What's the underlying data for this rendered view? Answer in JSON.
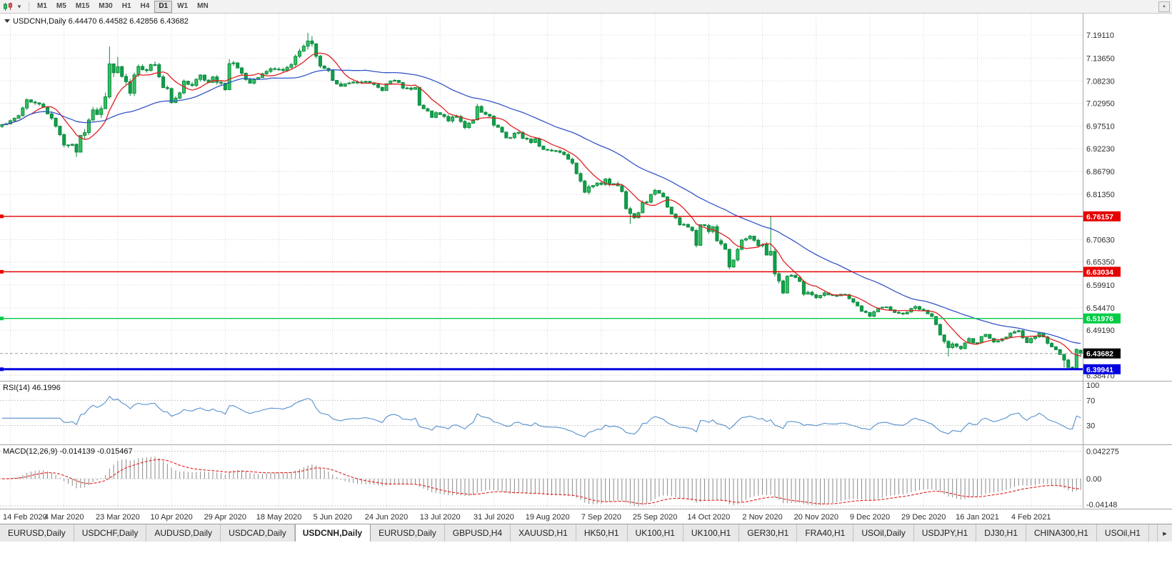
{
  "toolbar": {
    "timeframes": [
      {
        "label": "M1",
        "active": false
      },
      {
        "label": "M5",
        "active": false
      },
      {
        "label": "M15",
        "active": false
      },
      {
        "label": "M30",
        "active": false
      },
      {
        "label": "H1",
        "active": false
      },
      {
        "label": "H4",
        "active": false
      },
      {
        "label": "D1",
        "active": true
      },
      {
        "label": "W1",
        "active": false
      },
      {
        "label": "MN",
        "active": false
      }
    ],
    "caret": "▾",
    "corner_arrow": "▴"
  },
  "header": {
    "marker": "▼",
    "symbol": "USDCNH,Daily",
    "open": "6.44470",
    "high": "6.44582",
    "low": "6.42856",
    "close": "6.43682"
  },
  "price_axis": {
    "range": {
      "max": 7.242,
      "min": 6.372
    },
    "labels": [
      [
        "7.19110",
        7.1911
      ],
      [
        "7.13650",
        7.1365
      ],
      [
        "7.08230",
        7.0823
      ],
      [
        "7.02950",
        7.0295
      ],
      [
        "6.97510",
        6.9751
      ],
      [
        "6.92230",
        6.9223
      ],
      [
        "6.86790",
        6.8679
      ],
      [
        "6.81350",
        6.8135
      ],
      [
        "6.70630",
        6.7063
      ],
      [
        "6.65350",
        6.6535
      ],
      [
        "6.59910",
        6.5991
      ],
      [
        "6.54470",
        6.5447
      ],
      [
        "6.49190",
        6.4919
      ],
      [
        "6.38470",
        6.3847
      ]
    ]
  },
  "hlines": [
    {
      "label": "6.76157",
      "price": 6.76157,
      "color": "#e60000",
      "width": 1.4
    },
    {
      "label": "6.63034",
      "price": 6.63034,
      "color": "#e60000",
      "width": 1.4
    },
    {
      "label": "6.51976",
      "price": 6.51976,
      "color": "#00cc44",
      "width": 1.4
    },
    {
      "label": "6.39941",
      "price": 6.39941,
      "color": "#0000e0",
      "width": 3
    }
  ],
  "current_price": {
    "label": "6.43682",
    "price": 6.43682,
    "bg": "#000000"
  },
  "time_axis": {
    "tick_start": 2,
    "tick_step": 13,
    "labels": [
      "14 Feb 2020",
      "4 Mar 2020",
      "23 Mar 2020",
      "10 Apr 2020",
      "29 Apr 2020",
      "18 May 2020",
      "5 Jun 2020",
      "24 Jun 2020",
      "13 Jul 2020",
      "31 Jul 2020",
      "19 Aug 2020",
      "7 Sep 2020",
      "25 Sep 2020",
      "14 Oct 2020",
      "2 Nov 2020",
      "20 Nov 2020",
      "9 Dec 2020",
      "29 Dec 2020",
      "16 Jan 2021",
      "4 Feb 2021"
    ]
  },
  "chart_data": {
    "type": "candlestick",
    "symbol": "USDCNH",
    "timeframe": "Daily",
    "count": 262,
    "seed": 7,
    "close_anchors": [
      [
        0,
        6.982
      ],
      [
        2,
        6.985
      ],
      [
        4,
        7.0
      ],
      [
        6,
        7.038
      ],
      [
        8,
        7.03
      ],
      [
        10,
        7.022
      ],
      [
        12,
        6.992
      ],
      [
        14,
        6.958
      ],
      [
        15,
        6.932
      ],
      [
        17,
        6.932
      ],
      [
        18,
        6.916
      ],
      [
        19,
        6.948
      ],
      [
        20,
        6.963
      ],
      [
        21,
        6.985
      ],
      [
        22,
        7.018
      ],
      [
        23,
        7.008
      ],
      [
        24,
        7.022
      ],
      [
        25,
        7.048
      ],
      [
        26,
        7.122
      ],
      [
        27,
        7.098
      ],
      [
        28,
        7.122
      ],
      [
        29,
        7.088
      ],
      [
        30,
        7.08
      ],
      [
        31,
        7.052
      ],
      [
        32,
        7.095
      ],
      [
        33,
        7.112
      ],
      [
        34,
        7.108
      ],
      [
        35,
        7.103
      ],
      [
        36,
        7.118
      ],
      [
        37,
        7.125
      ],
      [
        38,
        7.095
      ],
      [
        39,
        7.068
      ],
      [
        40,
        7.065
      ],
      [
        41,
        7.035
      ],
      [
        42,
        7.045
      ],
      [
        43,
        7.052
      ],
      [
        44,
        7.083
      ],
      [
        45,
        7.075
      ],
      [
        46,
        7.072
      ],
      [
        47,
        7.083
      ],
      [
        48,
        7.095
      ],
      [
        49,
        7.083
      ],
      [
        50,
        7.08
      ],
      [
        51,
        7.093
      ],
      [
        52,
        7.082
      ],
      [
        53,
        7.08
      ],
      [
        54,
        7.058
      ],
      [
        55,
        7.125
      ],
      [
        56,
        7.128
      ],
      [
        57,
        7.112
      ],
      [
        58,
        7.102
      ],
      [
        60,
        7.076
      ],
      [
        62,
        7.09
      ],
      [
        64,
        7.104
      ],
      [
        66,
        7.113
      ],
      [
        68,
        7.106
      ],
      [
        70,
        7.118
      ],
      [
        71,
        7.138
      ],
      [
        72,
        7.152
      ],
      [
        73,
        7.16
      ],
      [
        74,
        7.172
      ],
      [
        75,
        7.17
      ],
      [
        76,
        7.138
      ],
      [
        77,
        7.122
      ],
      [
        78,
        7.112
      ],
      [
        79,
        7.108
      ],
      [
        80,
        7.082
      ],
      [
        82,
        7.068
      ],
      [
        84,
        7.077
      ],
      [
        86,
        7.078
      ],
      [
        88,
        7.08
      ],
      [
        90,
        7.075
      ],
      [
        92,
        7.062
      ],
      [
        93,
        7.078
      ],
      [
        95,
        7.082
      ],
      [
        96,
        7.078
      ],
      [
        97,
        7.068
      ],
      [
        99,
        7.062
      ],
      [
        100,
        7.066
      ],
      [
        101,
        7.022
      ],
      [
        102,
        7.018
      ],
      [
        103,
        7.008
      ],
      [
        104,
        6.995
      ],
      [
        105,
        7.005
      ],
      [
        106,
        7.002
      ],
      [
        108,
        6.99
      ],
      [
        110,
        6.998
      ],
      [
        112,
        6.974
      ],
      [
        114,
        6.992
      ],
      [
        115,
        7.02
      ],
      [
        116,
        7.006
      ],
      [
        118,
        6.998
      ],
      [
        119,
        6.975
      ],
      [
        120,
        6.972
      ],
      [
        121,
        6.96
      ],
      [
        122,
        6.945
      ],
      [
        123,
        6.948
      ],
      [
        124,
        6.96
      ],
      [
        125,
        6.96
      ],
      [
        126,
        6.945
      ],
      [
        127,
        6.943
      ],
      [
        128,
        6.938
      ],
      [
        129,
        6.945
      ],
      [
        130,
        6.928
      ],
      [
        131,
        6.92
      ],
      [
        132,
        6.92
      ],
      [
        134,
        6.917
      ],
      [
        136,
        6.91
      ],
      [
        138,
        6.89
      ],
      [
        139,
        6.866
      ],
      [
        140,
        6.848
      ],
      [
        141,
        6.816
      ],
      [
        142,
        6.828
      ],
      [
        143,
        6.838
      ],
      [
        144,
        6.843
      ],
      [
        145,
        6.838
      ],
      [
        146,
        6.85
      ],
      [
        147,
        6.835
      ],
      [
        148,
        6.84
      ],
      [
        149,
        6.835
      ],
      [
        150,
        6.818
      ],
      [
        151,
        6.778
      ],
      [
        152,
        6.766
      ],
      [
        153,
        6.758
      ],
      [
        154,
        6.768
      ],
      [
        155,
        6.795
      ],
      [
        156,
        6.795
      ],
      [
        157,
        6.815
      ],
      [
        158,
        6.823
      ],
      [
        159,
        6.815
      ],
      [
        160,
        6.81
      ],
      [
        161,
        6.785
      ],
      [
        162,
        6.765
      ],
      [
        163,
        6.756
      ],
      [
        164,
        6.74
      ],
      [
        165,
        6.743
      ],
      [
        166,
        6.737
      ],
      [
        167,
        6.725
      ],
      [
        168,
        6.695
      ],
      [
        169,
        6.743
      ],
      [
        170,
        6.74
      ],
      [
        171,
        6.723
      ],
      [
        172,
        6.738
      ],
      [
        173,
        6.7
      ],
      [
        174,
        6.696
      ],
      [
        175,
        6.684
      ],
      [
        176,
        6.643
      ],
      [
        177,
        6.658
      ],
      [
        178,
        6.685
      ],
      [
        179,
        6.703
      ],
      [
        180,
        6.708
      ],
      [
        181,
        6.712
      ],
      [
        182,
        6.703
      ],
      [
        183,
        6.692
      ],
      [
        184,
        6.695
      ],
      [
        185,
        6.668
      ],
      [
        186,
        6.674
      ],
      [
        187,
        6.625
      ],
      [
        188,
        6.607
      ],
      [
        189,
        6.583
      ],
      [
        190,
        6.618
      ],
      [
        191,
        6.623
      ],
      [
        192,
        6.616
      ],
      [
        193,
        6.605
      ],
      [
        194,
        6.578
      ],
      [
        195,
        6.583
      ],
      [
        196,
        6.578
      ],
      [
        197,
        6.568
      ],
      [
        199,
        6.578
      ],
      [
        201,
        6.575
      ],
      [
        203,
        6.576
      ],
      [
        204,
        6.574
      ],
      [
        206,
        6.557
      ],
      [
        208,
        6.538
      ],
      [
        210,
        6.526
      ],
      [
        212,
        6.545
      ],
      [
        214,
        6.546
      ],
      [
        216,
        6.533
      ],
      [
        218,
        6.53
      ],
      [
        221,
        6.548
      ],
      [
        223,
        6.538
      ],
      [
        225,
        6.524
      ],
      [
        226,
        6.505
      ],
      [
        227,
        6.478
      ],
      [
        228,
        6.462
      ],
      [
        229,
        6.453
      ],
      [
        230,
        6.462
      ],
      [
        231,
        6.455
      ],
      [
        232,
        6.448
      ],
      [
        233,
        6.462
      ],
      [
        234,
        6.47
      ],
      [
        235,
        6.46
      ],
      [
        236,
        6.462
      ],
      [
        237,
        6.475
      ],
      [
        238,
        6.483
      ],
      [
        240,
        6.462
      ],
      [
        242,
        6.47
      ],
      [
        244,
        6.483
      ],
      [
        246,
        6.489
      ],
      [
        248,
        6.464
      ],
      [
        250,
        6.478
      ],
      [
        251,
        6.487
      ],
      [
        252,
        6.474
      ],
      [
        253,
        6.462
      ],
      [
        254,
        6.452
      ],
      [
        255,
        6.447
      ],
      [
        256,
        6.433
      ],
      [
        257,
        6.42
      ],
      [
        258,
        6.406
      ],
      [
        259,
        6.402
      ],
      [
        260,
        6.4447
      ],
      [
        261,
        6.43682
      ]
    ],
    "vol_anchors": [
      [
        0,
        0.011
      ],
      [
        10,
        0.012
      ],
      [
        14,
        0.016
      ],
      [
        20,
        0.02
      ],
      [
        26,
        0.028
      ],
      [
        30,
        0.018
      ],
      [
        40,
        0.014
      ],
      [
        50,
        0.011
      ],
      [
        55,
        0.016
      ],
      [
        60,
        0.011
      ],
      [
        70,
        0.012
      ],
      [
        74,
        0.018
      ],
      [
        78,
        0.013
      ],
      [
        90,
        0.008
      ],
      [
        100,
        0.009
      ],
      [
        104,
        0.012
      ],
      [
        112,
        0.01
      ],
      [
        122,
        0.009
      ],
      [
        132,
        0.008
      ],
      [
        140,
        0.012
      ],
      [
        151,
        0.013
      ],
      [
        160,
        0.009
      ],
      [
        168,
        0.013
      ],
      [
        176,
        0.013
      ],
      [
        182,
        0.009
      ],
      [
        186,
        0.018
      ],
      [
        190,
        0.014
      ],
      [
        196,
        0.009
      ],
      [
        205,
        0.007
      ],
      [
        215,
        0.007
      ],
      [
        224,
        0.008
      ],
      [
        228,
        0.012
      ],
      [
        236,
        0.008
      ],
      [
        246,
        0.008
      ],
      [
        252,
        0.008
      ],
      [
        258,
        0.008
      ],
      [
        261,
        0.006
      ]
    ],
    "spikes_high": [
      [
        26,
        7.164
      ],
      [
        28,
        7.139
      ],
      [
        37,
        7.1285
      ],
      [
        55,
        7.134
      ],
      [
        74,
        7.1965
      ],
      [
        75,
        7.188
      ],
      [
        115,
        7.028
      ],
      [
        186,
        6.7605
      ]
    ],
    "spikes_low": [
      [
        18,
        6.902
      ],
      [
        152,
        6.7435
      ],
      [
        168,
        6.6885
      ],
      [
        176,
        6.636
      ],
      [
        229,
        6.4295
      ],
      [
        257,
        6.4035
      ],
      [
        258,
        6.4005
      ],
      [
        259,
        6.3996
      ]
    ],
    "last_ohlc": [
      6.4447,
      6.44582,
      6.42856,
      6.43682
    ],
    "ma_fast_period": 8,
    "ma_slow_period": 34,
    "colors": {
      "up_fill": "#33c161",
      "down_fill": "#0f9f4a",
      "stroke": "#0b8a3e",
      "ma_fast": "#e02020",
      "ma_slow": "#3555c8"
    }
  },
  "rsi": {
    "name": "RSI(14)",
    "value": "46.1996",
    "period": 14,
    "color": "#5590cc",
    "level_lines": [
      70,
      30
    ],
    "levels": [
      {
        "label": "100",
        "value": 100
      },
      {
        "label": "70",
        "value": 70
      },
      {
        "label": "30",
        "value": 30
      }
    ]
  },
  "macd": {
    "name": "MACD(12,26,9)",
    "values": "-0.014139 -0.015467",
    "fast": 12,
    "slow": 26,
    "signal": 9,
    "hist_color": "#8a8a8a",
    "signal_color": "#e02020",
    "range": {
      "max": 0.0515,
      "min": -0.0458
    },
    "axis_labels": [
      {
        "label": "0.042275",
        "value": 0.042275
      },
      {
        "label": "0.00",
        "value": 0
      },
      {
        "label": "-0.04148",
        "value": -0.04148
      }
    ]
  },
  "tabs": {
    "scroll_right": "▸",
    "items": [
      {
        "label": "EURUSD,Daily",
        "active": false
      },
      {
        "label": "USDCHF,Daily",
        "active": false
      },
      {
        "label": "AUDUSD,Daily",
        "active": false
      },
      {
        "label": "USDCAD,Daily",
        "active": false
      },
      {
        "label": "USDCNH,Daily",
        "active": true
      },
      {
        "label": "EURUSD,Daily",
        "active": false
      },
      {
        "label": "GBPUSD,H4",
        "active": false
      },
      {
        "label": "XAUUSD,H1",
        "active": false
      },
      {
        "label": "HK50,H1",
        "active": false
      },
      {
        "label": "UK100,H1",
        "active": false
      },
      {
        "label": "UK100,H1",
        "active": false
      },
      {
        "label": "GER30,H1",
        "active": false
      },
      {
        "label": "FRA40,H1",
        "active": false
      },
      {
        "label": "USOil,Daily",
        "active": false
      },
      {
        "label": "USDJPY,H1",
        "active": false
      },
      {
        "label": "DJ30,H1",
        "active": false
      },
      {
        "label": "CHINA300,H1",
        "active": false
      },
      {
        "label": "USOil,H1",
        "active": false
      }
    ]
  }
}
